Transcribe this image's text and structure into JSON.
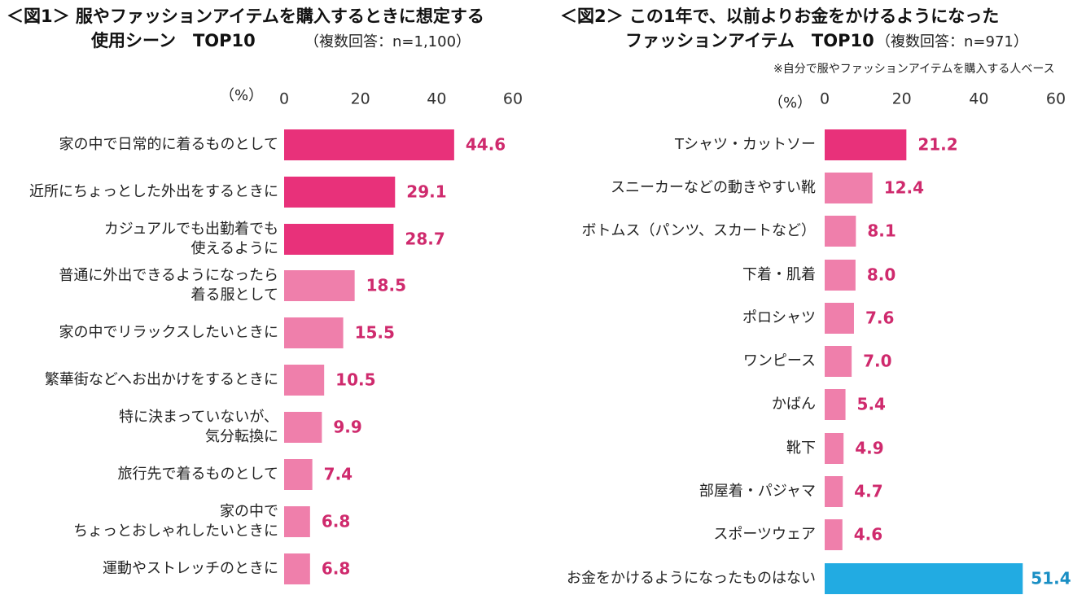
{
  "chart_data": [
    {
      "type": "bar",
      "orientation": "horizontal",
      "title_lines": [
        "＜図1＞ 服やファッションアイテムを購入するときに想定する",
        "使用シーン　TOP10"
      ],
      "subtitle": "（複数回答：n=1,100）",
      "unit_label": "（%）",
      "xlim": [
        0,
        60
      ],
      "ticks": [
        "0",
        "20",
        "40",
        "60"
      ],
      "grid": false,
      "categories": [
        [
          "家の中で日常的に着るものとして"
        ],
        [
          "近所にちょっとした外出をするときに"
        ],
        [
          "カジュアルでも出勤着でも",
          "使えるように"
        ],
        [
          "普通に外出できるようになったら",
          "着る服として"
        ],
        [
          "家の中でリラックスしたいときに"
        ],
        [
          "繁華街などへお出かけをするときに"
        ],
        [
          "特に決まっていないが、",
          "気分転換に"
        ],
        [
          "旅行先で着るものとして"
        ],
        [
          "家の中で",
          "ちょっとおしゃれしたいときに"
        ],
        [
          "運動やストレッチのときに"
        ]
      ],
      "values": [
        44.6,
        29.1,
        28.7,
        18.5,
        15.5,
        10.5,
        9.9,
        7.4,
        6.8,
        6.8
      ],
      "value_labels": [
        "44.6",
        "29.1",
        "28.7",
        "18.5",
        "15.5",
        "10.5",
        "9.9",
        "7.4",
        "6.8",
        "6.8"
      ],
      "highlight_count": 3,
      "colors": {
        "highlight": "#e8317a",
        "normal": "#ef7fab",
        "label": "#cf2a6d"
      }
    },
    {
      "type": "bar",
      "orientation": "horizontal",
      "title_lines": [
        "＜図2＞ この1年で、以前よりお金をかけるようになった",
        "ファッションアイテム　TOP10"
      ],
      "subtitle": "（複数回答：n=971）",
      "note": "※自分で服やファッションアイテムを購入する人ベース",
      "unit_label": "（%）",
      "xlim": [
        0,
        60
      ],
      "ticks": [
        "0",
        "20",
        "40",
        "60"
      ],
      "grid": false,
      "categories": [
        [
          "Tシャツ・カットソー"
        ],
        [
          "スニーカーなどの動きやすい靴"
        ],
        [
          "ボトムス（パンツ、スカートなど）"
        ],
        [
          "下着・肌着"
        ],
        [
          "ポロシャツ"
        ],
        [
          "ワンピース"
        ],
        [
          "かばん"
        ],
        [
          "靴下"
        ],
        [
          "部屋着・パジャマ"
        ],
        [
          "スポーツウェア"
        ],
        [
          "お金をかけるようになったものはない"
        ]
      ],
      "values": [
        21.2,
        12.4,
        8.1,
        8.0,
        7.6,
        7.0,
        5.4,
        4.9,
        4.7,
        4.6,
        51.4
      ],
      "value_labels": [
        "21.2",
        "12.4",
        "8.1",
        "8.0",
        "7.6",
        "7.0",
        "5.4",
        "4.9",
        "4.7",
        "4.6",
        "51.4"
      ],
      "highlight_count": 1,
      "colors": {
        "highlight": "#e8317a",
        "normal": "#ef7fab",
        "label": "#cf2a6d",
        "none_bar": "#22abe2",
        "none_label": "#1a8fc4"
      }
    }
  ]
}
